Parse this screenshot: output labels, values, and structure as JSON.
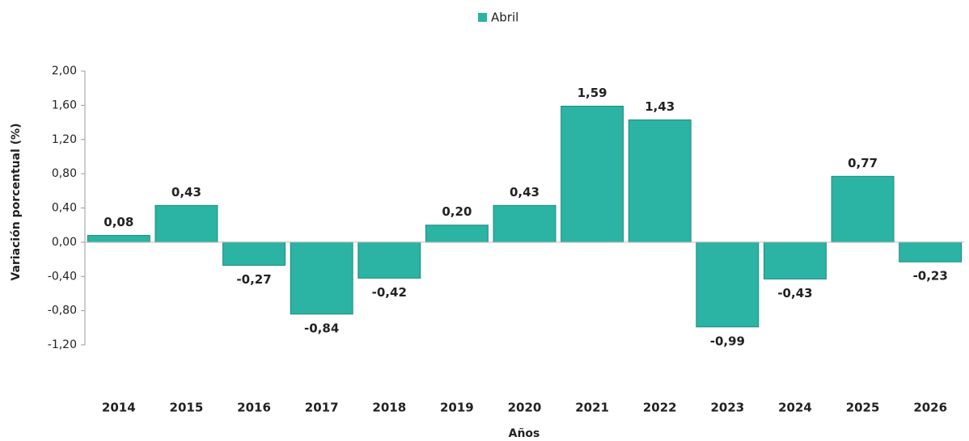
{
  "chart_data": {
    "type": "bar",
    "categories": [
      "2014",
      "2015",
      "2016",
      "2017",
      "2018",
      "2019",
      "2020",
      "2021",
      "2022",
      "2023",
      "2024",
      "2025",
      "2026"
    ],
    "series": [
      {
        "name": "Abril",
        "color": "#2bb3a3",
        "values": [
          0.08,
          0.43,
          -0.27,
          -0.84,
          -0.42,
          0.2,
          0.43,
          1.59,
          1.43,
          -0.99,
          -0.43,
          0.77,
          -0.23
        ],
        "value_labels": [
          "0,08",
          "0,43",
          "-0,27",
          "-0,84",
          "-0,42",
          "0,20",
          "0,43",
          "1,59",
          "1,43",
          "-0,99",
          "-0,43",
          "0,77",
          "-0,23"
        ]
      }
    ],
    "x_label": "Años",
    "y_label": "Variación porcentual (%)",
    "ylim": [
      -1.2,
      2.0
    ],
    "yticks": [
      {
        "value": 2.0,
        "label": "2,00"
      },
      {
        "value": 1.6,
        "label": "1,60"
      },
      {
        "value": 1.2,
        "label": "1,20"
      },
      {
        "value": 0.8,
        "label": "0,80"
      },
      {
        "value": 0.4,
        "label": "0,40"
      },
      {
        "value": 0,
        "label": "0,00"
      },
      {
        "value": -0.4,
        "label": "-0,40"
      },
      {
        "value": -0.8,
        "label": "-0,80"
      },
      {
        "value": -1.2,
        "label": "-1,20"
      }
    ],
    "legend": "top"
  }
}
